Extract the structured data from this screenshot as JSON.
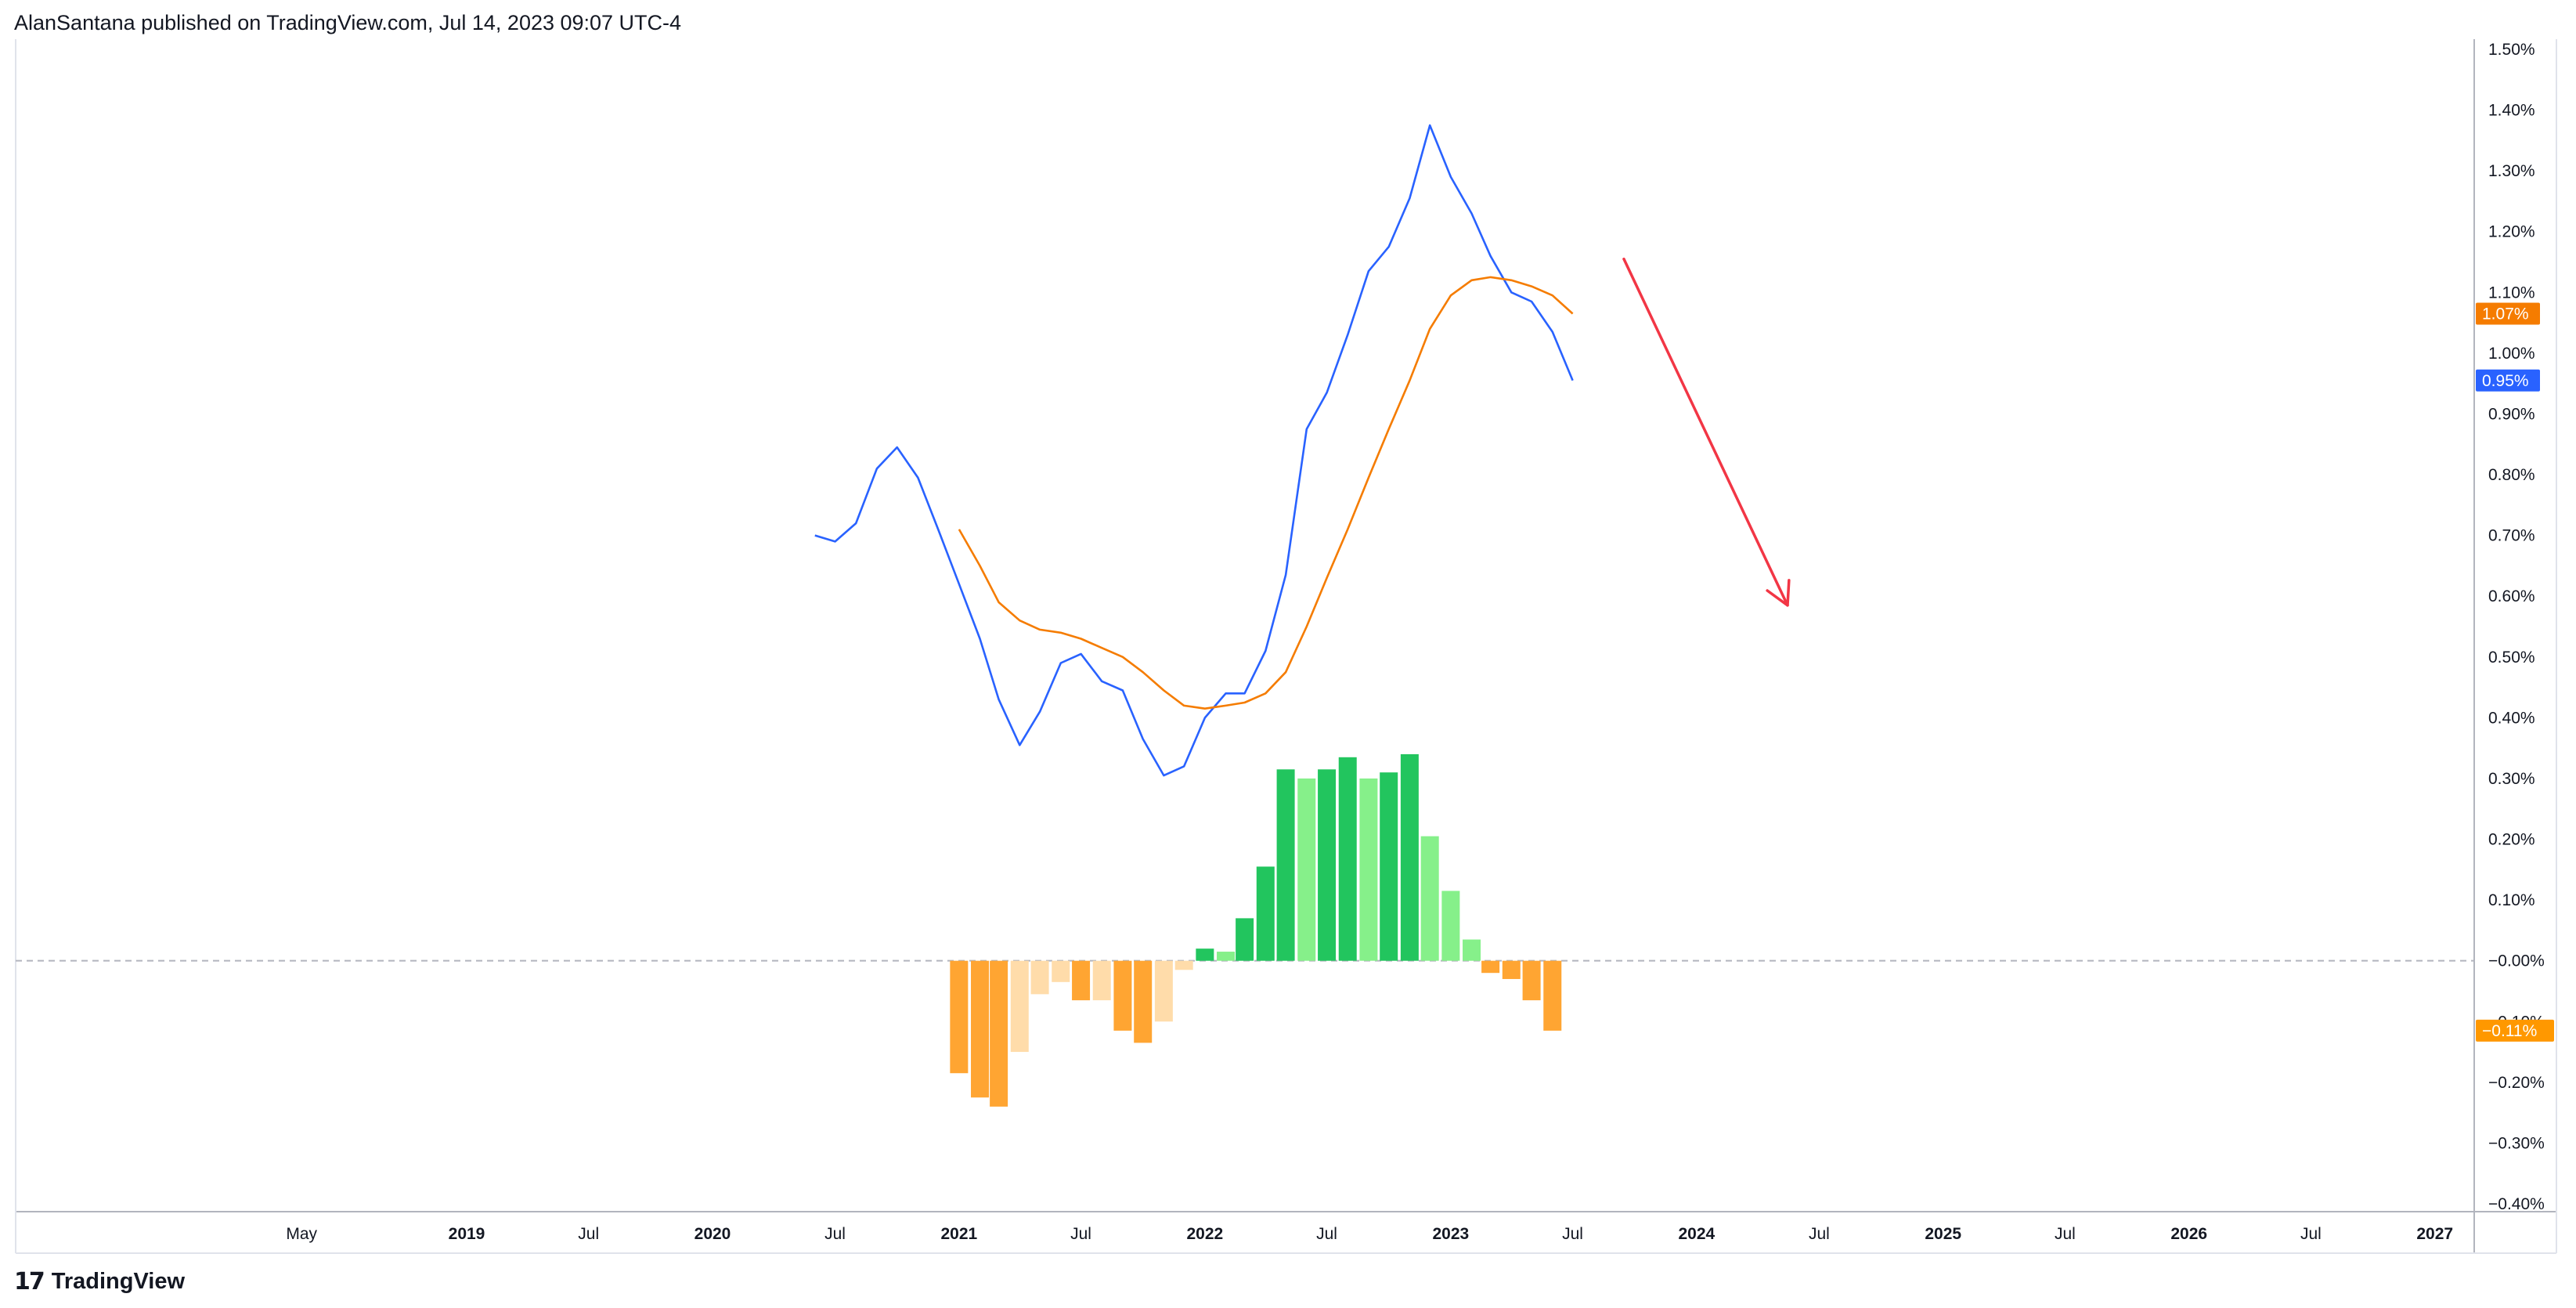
{
  "header": {
    "text": "AlanSantana published on TradingView.com, Jul 14, 2023 09:07 UTC-4"
  },
  "footer": {
    "brand": "TradingView",
    "logo_icon": "tradingview-logo-icon"
  },
  "colors": {
    "blue_line": "#2962ff",
    "orange_line": "#f57c00",
    "hist_dark_green": "#22c55e",
    "hist_light_green": "#86f08a",
    "hist_dark_orange": "#ffa532",
    "hist_light_orange": "#ffdcaa",
    "arrow_red": "#f23645",
    "axis_line": "#b2b5be",
    "zero_line": "#b2b5be"
  },
  "chart_data": {
    "type": "line",
    "title": "",
    "y_axis": {
      "min": -0.4,
      "max": 1.5,
      "tick_labels": [
        "1.50%",
        "1.40%",
        "1.30%",
        "1.20%",
        "1.10%",
        "1.00%",
        "0.90%",
        "0.80%",
        "0.70%",
        "0.60%",
        "0.50%",
        "0.40%",
        "0.30%",
        "0.20%",
        "0.10%",
        "−0.00%",
        "−0.10%",
        "−0.20%",
        "−0.30%",
        "−0.40%"
      ],
      "tick_values": [
        1.5,
        1.4,
        1.3,
        1.2,
        1.1,
        1.0,
        0.9,
        0.8,
        0.7,
        0.6,
        0.5,
        0.4,
        0.3,
        0.2,
        0.1,
        0.0,
        -0.1,
        -0.2,
        -0.3,
        -0.4
      ]
    },
    "x_axis": {
      "tick_labels": [
        "May",
        "2019",
        "Jul",
        "2020",
        "Jul",
        "2021",
        "Jul",
        "2022",
        "Jul",
        "2023",
        "Jul",
        "2024",
        "Jul",
        "2025",
        "Jul",
        "2026",
        "Jul",
        "2027"
      ],
      "tick_dates": [
        "2018-05",
        "2019-01",
        "2019-07",
        "2020-01",
        "2020-07",
        "2021-01",
        "2021-07",
        "2022-01",
        "2022-07",
        "2023-01",
        "2023-07",
        "2024-01",
        "2024-07",
        "2025-01",
        "2025-07",
        "2026-01",
        "2026-07",
        "2027-01"
      ],
      "bold": [
        false,
        true,
        false,
        true,
        false,
        true,
        false,
        true,
        false,
        true,
        false,
        true,
        false,
        true,
        false,
        true,
        false,
        true
      ]
    },
    "series": [
      {
        "color_key": "blue_line",
        "last_value_label": "0.95%",
        "points": [
          [
            "2020-06",
            0.7
          ],
          [
            "2020-07",
            0.69
          ],
          [
            "2020-08",
            0.72
          ],
          [
            "2020-09",
            0.81
          ],
          [
            "2020-10",
            0.845
          ],
          [
            "2020-11",
            0.795
          ],
          [
            "2020-12",
            0.71
          ],
          [
            "2021-01",
            0.62
          ],
          [
            "2021-02",
            0.53
          ],
          [
            "2021-03",
            0.43
          ],
          [
            "2021-04",
            0.355
          ],
          [
            "2021-05",
            0.41
          ],
          [
            "2021-06",
            0.49
          ],
          [
            "2021-07",
            0.505
          ],
          [
            "2021-08",
            0.46
          ],
          [
            "2021-09",
            0.445
          ],
          [
            "2021-10",
            0.365
          ],
          [
            "2021-11",
            0.305
          ],
          [
            "2021-12",
            0.32
          ],
          [
            "2022-01",
            0.4
          ],
          [
            "2022-02",
            0.44
          ],
          [
            "2022-03",
            0.44
          ],
          [
            "2022-04",
            0.51
          ],
          [
            "2022-05",
            0.635
          ],
          [
            "2022-06",
            0.875
          ],
          [
            "2022-07",
            0.935
          ],
          [
            "2022-08",
            1.03
          ],
          [
            "2022-09",
            1.135
          ],
          [
            "2022-10",
            1.175
          ],
          [
            "2022-11",
            1.255
          ],
          [
            "2022-12",
            1.375
          ],
          [
            "2023-01",
            1.29
          ],
          [
            "2023-02",
            1.23
          ],
          [
            "2023-03",
            1.16
          ],
          [
            "2023-04",
            1.1
          ],
          [
            "2023-05",
            1.085
          ],
          [
            "2023-06",
            1.035
          ],
          [
            "2023-07",
            0.955
          ]
        ]
      },
      {
        "color_key": "orange_line",
        "last_value_label": "1.07%",
        "points": [
          [
            "2021-01",
            0.71
          ],
          [
            "2021-02",
            0.65
          ],
          [
            "2021-03",
            0.59
          ],
          [
            "2021-04",
            0.56
          ],
          [
            "2021-05",
            0.545
          ],
          [
            "2021-06",
            0.54
          ],
          [
            "2021-07",
            0.53
          ],
          [
            "2021-08",
            0.515
          ],
          [
            "2021-09",
            0.5
          ],
          [
            "2021-10",
            0.475
          ],
          [
            "2021-11",
            0.445
          ],
          [
            "2021-12",
            0.42
          ],
          [
            "2022-01",
            0.415
          ],
          [
            "2022-02",
            0.42
          ],
          [
            "2022-03",
            0.425
          ],
          [
            "2022-04",
            0.44
          ],
          [
            "2022-05",
            0.475
          ],
          [
            "2022-06",
            0.55
          ],
          [
            "2022-07",
            0.63
          ],
          [
            "2022-08",
            0.71
          ],
          [
            "2022-09",
            0.795
          ],
          [
            "2022-10",
            0.875
          ],
          [
            "2022-11",
            0.955
          ],
          [
            "2022-12",
            1.04
          ],
          [
            "2023-01",
            1.095
          ],
          [
            "2023-02",
            1.12
          ],
          [
            "2023-03",
            1.125
          ],
          [
            "2023-04",
            1.12
          ],
          [
            "2023-05",
            1.11
          ],
          [
            "2023-06",
            1.095
          ],
          [
            "2023-07",
            1.065
          ]
        ]
      }
    ],
    "histogram": {
      "last_value_label": "−0.11%",
      "bars": [
        [
          "2021-01",
          -0.185,
          "hist_dark_orange"
        ],
        [
          "2021-02",
          -0.225,
          "hist_dark_orange"
        ],
        [
          "2021-03",
          -0.24,
          "hist_dark_orange"
        ],
        [
          "2021-04",
          -0.15,
          "hist_light_orange"
        ],
        [
          "2021-05",
          -0.055,
          "hist_light_orange"
        ],
        [
          "2021-06",
          -0.035,
          "hist_light_orange"
        ],
        [
          "2021-07",
          -0.065,
          "hist_dark_orange"
        ],
        [
          "2021-08",
          -0.065,
          "hist_light_orange"
        ],
        [
          "2021-09",
          -0.115,
          "hist_dark_orange"
        ],
        [
          "2021-10",
          -0.135,
          "hist_dark_orange"
        ],
        [
          "2021-11",
          -0.1,
          "hist_light_orange"
        ],
        [
          "2021-12",
          -0.015,
          "hist_light_orange"
        ],
        [
          "2022-01",
          0.02,
          "hist_dark_green"
        ],
        [
          "2022-02",
          0.015,
          "hist_light_green"
        ],
        [
          "2022-03",
          0.07,
          "hist_dark_green"
        ],
        [
          "2022-04",
          0.155,
          "hist_dark_green"
        ],
        [
          "2022-05",
          0.315,
          "hist_dark_green"
        ],
        [
          "2022-06",
          0.3,
          "hist_light_green"
        ],
        [
          "2022-07",
          0.315,
          "hist_dark_green"
        ],
        [
          "2022-08",
          0.335,
          "hist_dark_green"
        ],
        [
          "2022-09",
          0.3,
          "hist_light_green"
        ],
        [
          "2022-10",
          0.31,
          "hist_dark_green"
        ],
        [
          "2022-11",
          0.34,
          "hist_dark_green"
        ],
        [
          "2022-12",
          0.205,
          "hist_light_green"
        ],
        [
          "2023-01",
          0.115,
          "hist_light_green"
        ],
        [
          "2023-02",
          0.035,
          "hist_light_green"
        ],
        [
          "2023-03",
          -0.02,
          "hist_dark_orange"
        ],
        [
          "2023-04",
          -0.03,
          "hist_dark_orange"
        ],
        [
          "2023-05",
          -0.065,
          "hist_dark_orange"
        ],
        [
          "2023-06",
          -0.115,
          "hist_dark_orange"
        ]
      ]
    },
    "annotation_arrow": {
      "from": [
        "2023-09-15",
        1.155
      ],
      "to": [
        "2024-05-15",
        0.585
      ],
      "color_key": "arrow_red"
    },
    "grid": false,
    "legend": "none"
  }
}
